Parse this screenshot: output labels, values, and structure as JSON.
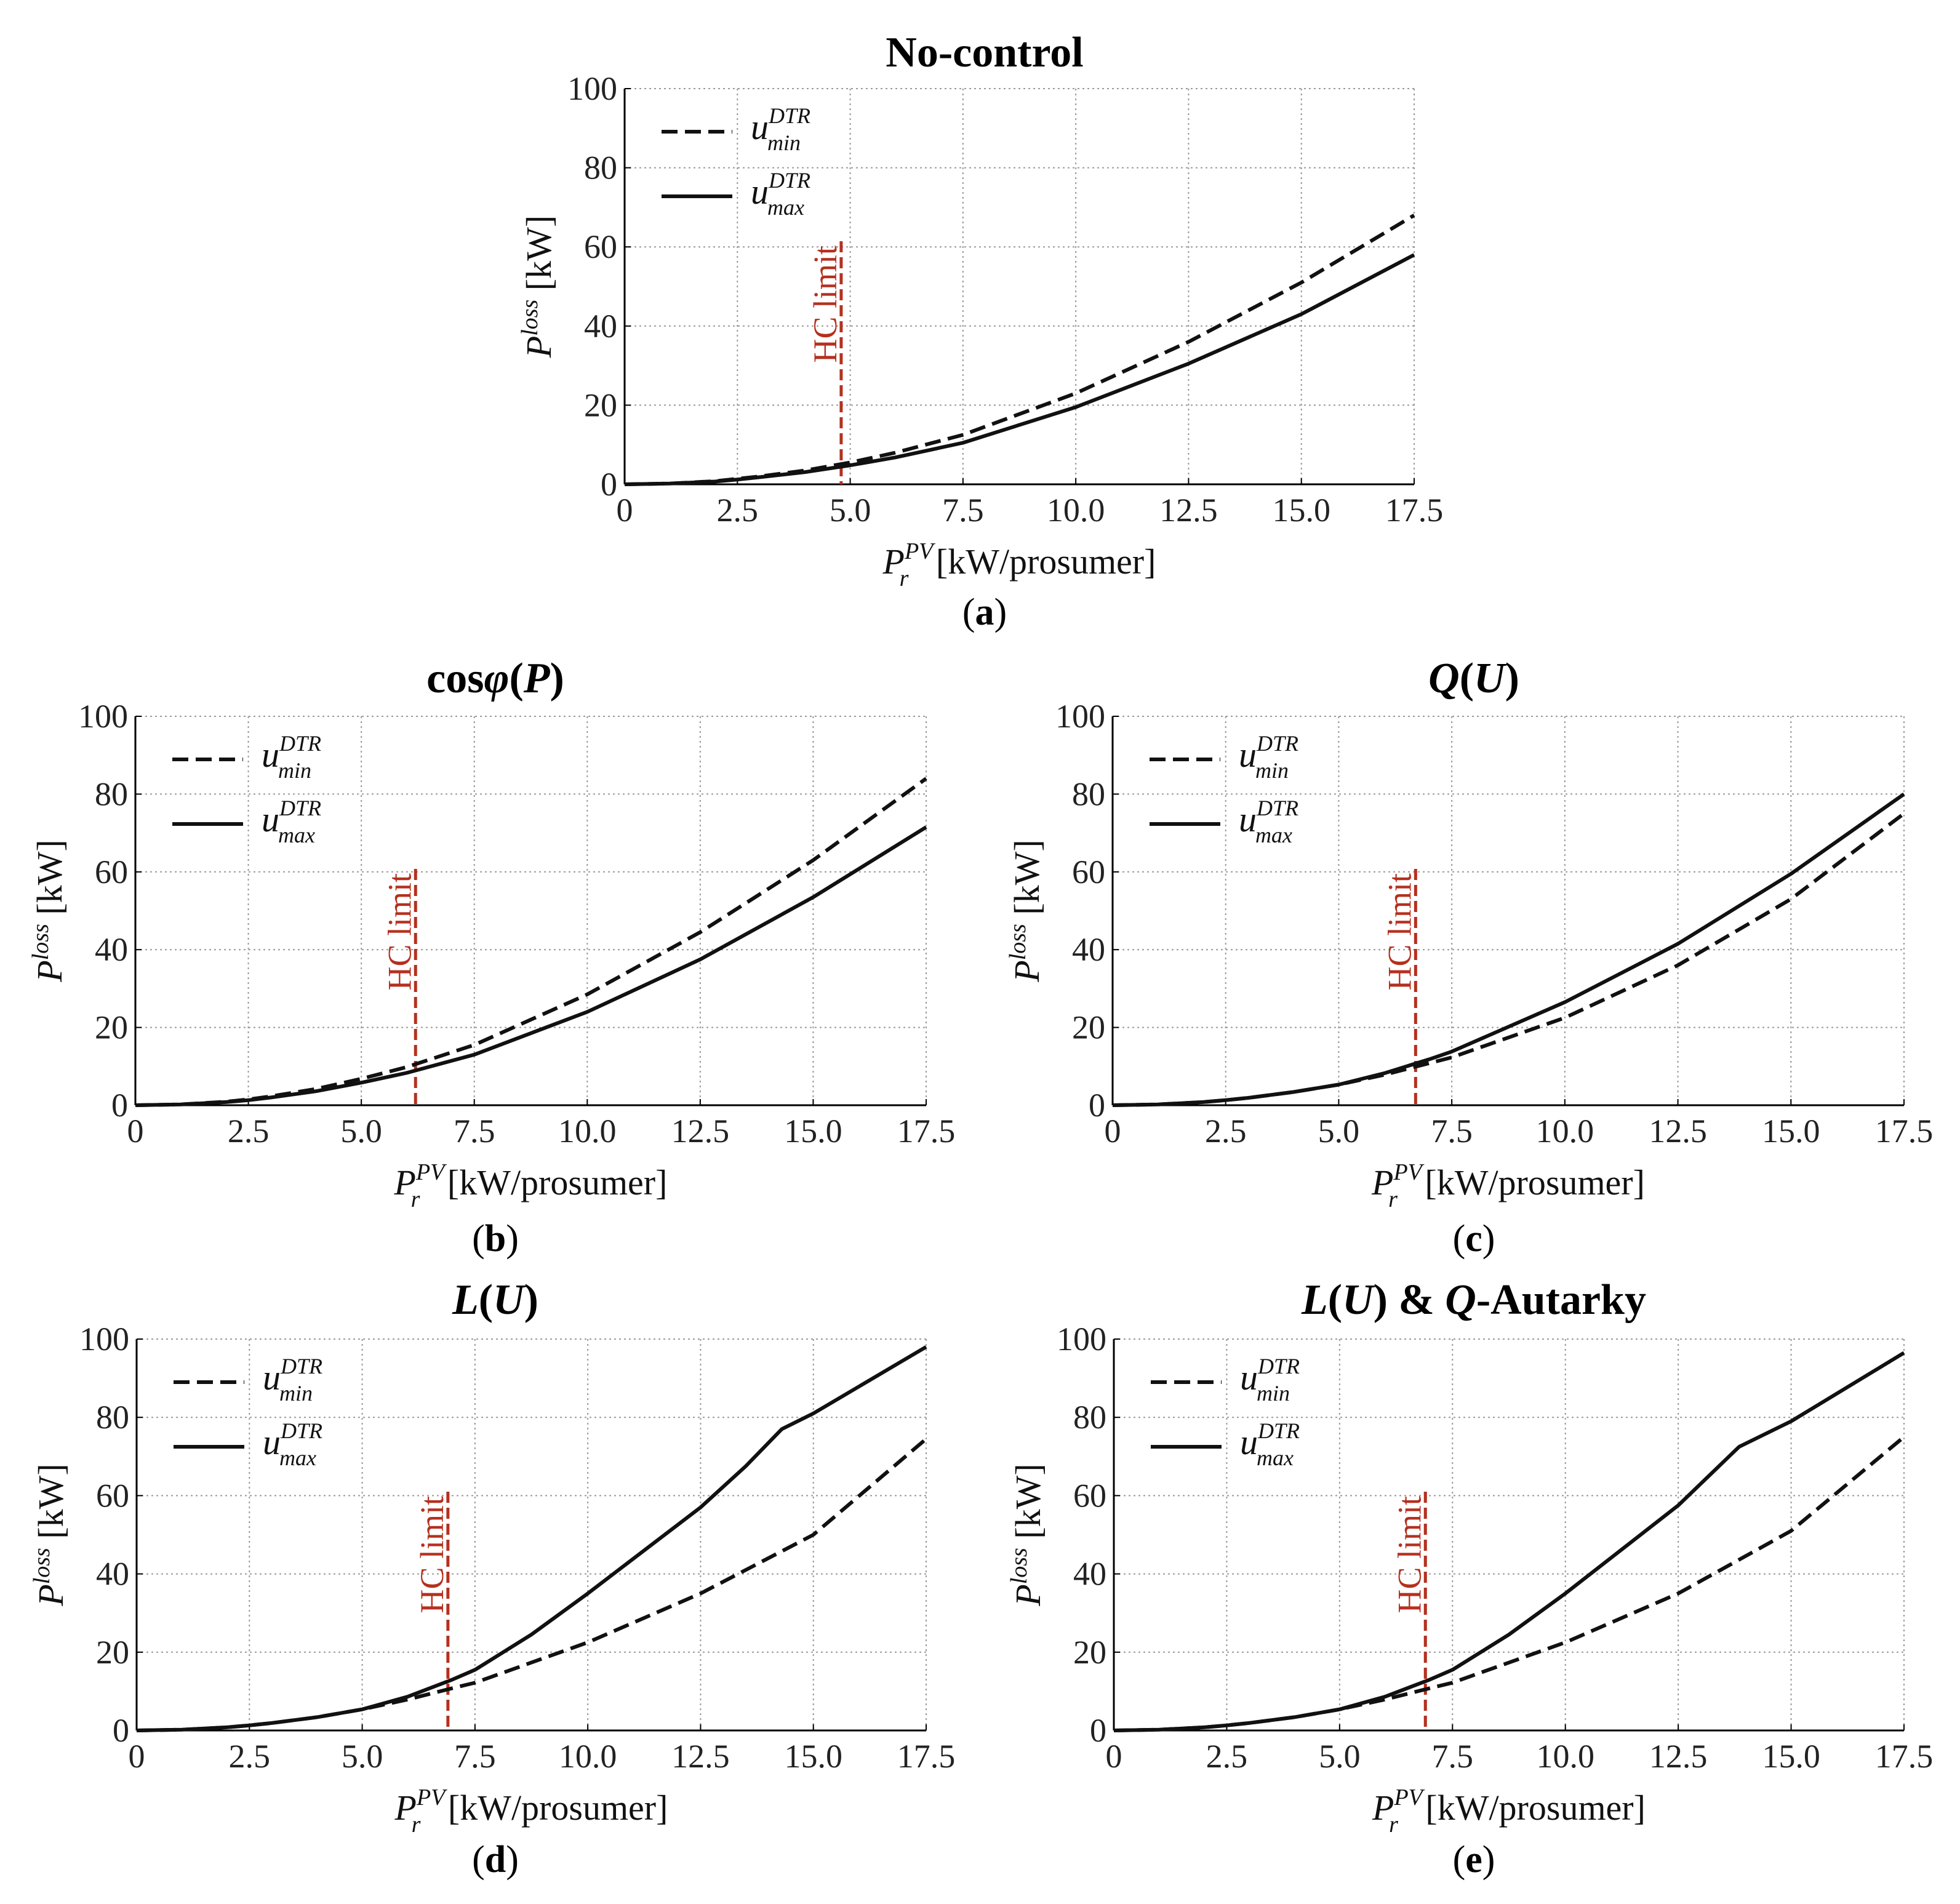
{
  "chart_data": [
    {
      "panel": "a",
      "type": "line",
      "title": "No-control",
      "caption": "(a)",
      "xlabel": "kW/prosumer",
      "ylabel": "kW",
      "xlim": [
        0,
        17.5
      ],
      "ylim": [
        0,
        100
      ],
      "xticks": [
        "0",
        "2.5",
        "5.0",
        "7.5",
        "10.0",
        "12.5",
        "15.0",
        "17.5"
      ],
      "yticks": [
        "0",
        "20",
        "40",
        "60",
        "80",
        "100"
      ],
      "grid": true,
      "legend_position": "top-left",
      "hc_limit": {
        "x": 4.8,
        "label": "HC limit",
        "color": "#b5301f"
      },
      "series": [
        {
          "name": "u_min^DTR",
          "style": "dashed",
          "x": [
            0,
            1,
            2,
            2.5,
            3,
            4,
            5,
            6,
            7.5,
            10,
            12.5,
            15,
            17.5
          ],
          "y": [
            0,
            0.2,
            0.8,
            1.4,
            2.0,
            3.5,
            5.5,
            8.0,
            12.5,
            23,
            36,
            51,
            68
          ]
        },
        {
          "name": "u_max^DTR",
          "style": "solid",
          "x": [
            0,
            1,
            2,
            2.5,
            3,
            4,
            5,
            6,
            7.5,
            10,
            12.5,
            15,
            17.5
          ],
          "y": [
            0,
            0.2,
            0.7,
            1.2,
            1.8,
            3.1,
            4.8,
            6.8,
            10.5,
            19.5,
            30.5,
            43,
            58
          ]
        }
      ]
    },
    {
      "panel": "b",
      "type": "line",
      "title": "cosφ(P)",
      "caption": "(b)",
      "xlabel": "kW/prosumer",
      "ylabel": "kW",
      "xlim": [
        0,
        17.5
      ],
      "ylim": [
        0,
        100
      ],
      "xticks": [
        "0",
        "2.5",
        "5.0",
        "7.5",
        "10.0",
        "12.5",
        "15.0",
        "17.5"
      ],
      "yticks": [
        "0",
        "20",
        "40",
        "60",
        "80",
        "100"
      ],
      "grid": true,
      "legend_position": "top-left",
      "hc_limit": {
        "x": 6.2,
        "label": "HC limit",
        "color": "#b5301f"
      },
      "series": [
        {
          "name": "u_min^DTR",
          "style": "dashed",
          "x": [
            0,
            1,
            2,
            2.5,
            3,
            4,
            5,
            6,
            7.5,
            10,
            12.5,
            15,
            17.5
          ],
          "y": [
            0,
            0.2,
            0.9,
            1.5,
            2.3,
            4.2,
            6.8,
            9.8,
            15.5,
            28.5,
            44.5,
            63,
            84
          ]
        },
        {
          "name": "u_max^DTR",
          "style": "solid",
          "x": [
            0,
            1,
            2,
            2.5,
            3,
            4,
            5,
            6,
            7.5,
            10,
            12.5,
            15,
            17.5
          ],
          "y": [
            0,
            0.2,
            0.8,
            1.3,
            2.0,
            3.6,
            5.8,
            8.3,
            13,
            24,
            37.5,
            53.5,
            71.5
          ]
        }
      ]
    },
    {
      "panel": "c",
      "type": "line",
      "title": "Q(U)",
      "caption": "(c)",
      "xlabel": "kW/prosumer",
      "ylabel": "kW",
      "xlim": [
        0,
        17.5
      ],
      "ylim": [
        0,
        100
      ],
      "xticks": [
        "0",
        "2.5",
        "5.0",
        "7.5",
        "10.0",
        "12.5",
        "15.0",
        "17.5"
      ],
      "yticks": [
        "0",
        "20",
        "40",
        "60",
        "80",
        "100"
      ],
      "grid": true,
      "legend_position": "top-left",
      "hc_limit": {
        "x": 6.7,
        "label": "HC limit",
        "color": "#b5301f"
      },
      "series": [
        {
          "name": "u_min^DTR",
          "style": "dashed",
          "x": [
            0,
            1,
            2,
            2.5,
            3,
            4,
            5,
            6,
            7,
            7.5,
            10,
            12.5,
            15,
            17.5
          ],
          "y": [
            0,
            0.2,
            0.8,
            1.3,
            1.9,
            3.4,
            5.3,
            7.8,
            10.8,
            12.3,
            22.5,
            36,
            53,
            75
          ]
        },
        {
          "name": "u_max^DTR",
          "style": "solid",
          "x": [
            0,
            1,
            2,
            2.5,
            3,
            4,
            5,
            6,
            7,
            7.5,
            10,
            12.5,
            15,
            17.5
          ],
          "y": [
            0,
            0.2,
            0.8,
            1.3,
            1.9,
            3.4,
            5.3,
            8.2,
            11.8,
            13.8,
            26.5,
            41.5,
            59.5,
            80
          ]
        }
      ]
    },
    {
      "panel": "d",
      "type": "line",
      "title": "L(U)",
      "caption": "(d)",
      "xlabel": "kW/prosumer",
      "ylabel": "kW",
      "xlim": [
        0,
        17.5
      ],
      "ylim": [
        0,
        100
      ],
      "xticks": [
        "0",
        "2.5",
        "5.0",
        "7.5",
        "10.0",
        "12.5",
        "15.0",
        "17.5"
      ],
      "yticks": [
        "0",
        "20",
        "40",
        "60",
        "80",
        "100"
      ],
      "grid": true,
      "legend_position": "top-left",
      "hc_limit": {
        "x": 6.9,
        "label": "HC limit",
        "color": "#b5301f"
      },
      "series": [
        {
          "name": "u_min^DTR",
          "style": "dashed",
          "x": [
            0,
            1,
            2,
            2.5,
            3,
            4,
            5,
            6,
            7,
            7.5,
            10,
            12.5,
            15,
            17.5
          ],
          "y": [
            0,
            0.2,
            0.8,
            1.3,
            1.9,
            3.4,
            5.4,
            7.9,
            10.8,
            12.2,
            22.5,
            35,
            50,
            74.5
          ]
        },
        {
          "name": "u_max^DTR",
          "style": "solid",
          "x": [
            0,
            1,
            2,
            2.5,
            3,
            4,
            5,
            6,
            7,
            7.5,
            8.75,
            10,
            12.5,
            13.5,
            14.3,
            15,
            17.5
          ],
          "y": [
            0,
            0.2,
            0.8,
            1.3,
            1.9,
            3.4,
            5.4,
            8.6,
            13,
            15.5,
            24.5,
            35,
            57,
            67.5,
            77,
            81,
            98
          ]
        }
      ]
    },
    {
      "panel": "e",
      "type": "line",
      "title": "L(U) & Q-Autarky",
      "caption": "(e)",
      "xlabel": "kW/prosumer",
      "ylabel": "kW",
      "xlim": [
        0,
        17.5
      ],
      "ylim": [
        0,
        100
      ],
      "xticks": [
        "0",
        "2.5",
        "5.0",
        "7.5",
        "10.0",
        "12.5",
        "15.0",
        "17.5"
      ],
      "yticks": [
        "0",
        "20",
        "40",
        "60",
        "80",
        "100"
      ],
      "grid": true,
      "legend_position": "top-left",
      "hc_limit": {
        "x": 6.9,
        "label": "HC limit",
        "color": "#b5301f"
      },
      "series": [
        {
          "name": "u_min^DTR",
          "style": "dashed",
          "x": [
            0,
            1,
            2,
            2.5,
            3,
            4,
            5,
            6,
            7,
            7.5,
            10,
            12.5,
            15,
            17.5
          ],
          "y": [
            0,
            0.2,
            0.8,
            1.3,
            1.9,
            3.4,
            5.4,
            7.9,
            10.8,
            12.2,
            22.5,
            35,
            51,
            75
          ]
        },
        {
          "name": "u_max^DTR",
          "style": "solid",
          "x": [
            0,
            1,
            2,
            2.5,
            3,
            4,
            5,
            6,
            7,
            7.5,
            8.75,
            10,
            12.5,
            13.85,
            15,
            17.5
          ],
          "y": [
            0,
            0.2,
            0.8,
            1.3,
            1.9,
            3.4,
            5.4,
            8.6,
            13,
            15.5,
            24.5,
            35,
            57.5,
            72.5,
            79,
            96.5
          ]
        }
      ]
    }
  ]
}
